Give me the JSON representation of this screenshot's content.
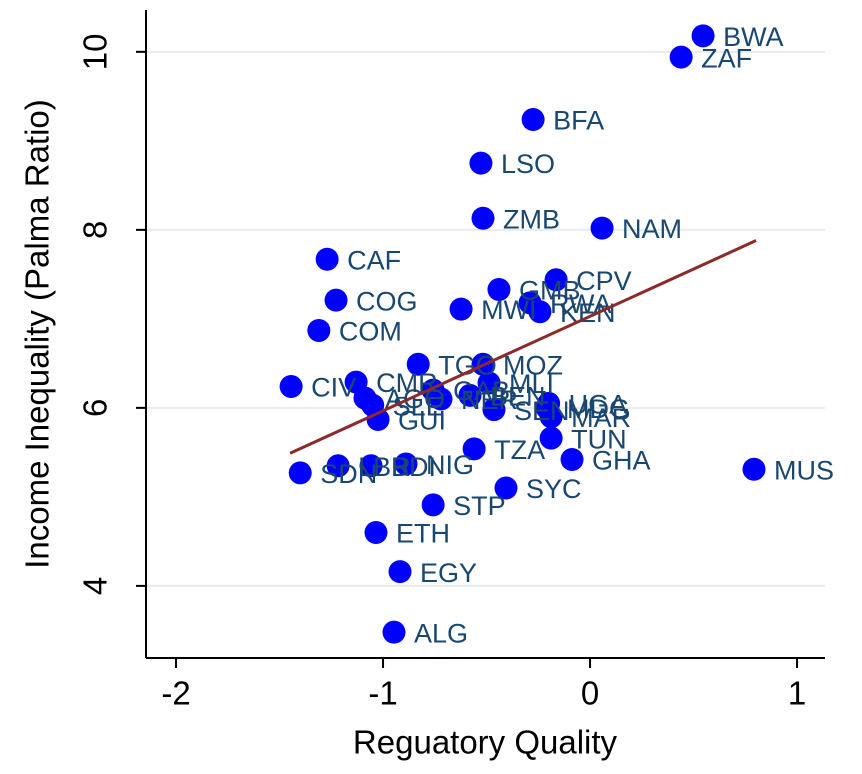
{
  "chart_data": {
    "type": "scatter",
    "x_label": "Reguatory Quality",
    "y_label": "Income Inequality (Palma Ratio)",
    "xlim": [
      -2.145,
      1.135
    ],
    "ylim": [
      3.19,
      10.47
    ],
    "xticks": [
      -2,
      -1,
      0,
      1
    ],
    "yticks": [
      4,
      6,
      8,
      10
    ],
    "grid": true,
    "color": "#0000ff",
    "labels": [
      "BWA",
      "ZAF",
      "BFA",
      "LSO",
      "ZMB",
      "NAM",
      "CAF",
      "CPV",
      "COG",
      "GMB",
      "RWA",
      "MWI",
      "KEN",
      "COM",
      "TGO",
      "MOZ",
      "CIV",
      "CMR",
      "AGO",
      "SLE",
      "GAB",
      "NER",
      "BEN",
      "MLI",
      "SEN",
      "UGA",
      "MDG",
      "MAR",
      "GUI",
      "TUN",
      "TZA",
      "GHA",
      "MUS",
      "NIG",
      "LBR",
      "BDI",
      "SDN",
      "SYC",
      "STP",
      "ETH",
      "EGY",
      "ALG"
    ],
    "x": [
      0.546,
      0.44,
      -0.275,
      -0.527,
      -0.517,
      0.058,
      -1.27,
      -0.164,
      -1.227,
      -0.44,
      -0.29,
      -0.623,
      -0.242,
      -1.31,
      -0.83,
      -0.517,
      -1.444,
      -1.13,
      -1.087,
      -1.05,
      -0.758,
      -0.72,
      -0.58,
      -0.488,
      -0.464,
      -0.2,
      -0.208,
      -0.188,
      -1.024,
      -0.188,
      -0.56,
      -0.087,
      0.792,
      -0.889,
      -1.217,
      -1.058,
      -1.4,
      -0.406,
      -0.758,
      -1.034,
      -0.918,
      -0.947
    ],
    "y": [
      10.18,
      9.94,
      9.24,
      8.75,
      8.13,
      8.02,
      7.67,
      7.44,
      7.21,
      7.33,
      7.18,
      7.11,
      7.08,
      6.87,
      6.49,
      6.49,
      6.24,
      6.29,
      6.11,
      6.03,
      6.2,
      6.1,
      6.14,
      6.28,
      5.98,
      6.05,
      6.0,
      5.9,
      5.87,
      5.66,
      5.54,
      5.42,
      5.31,
      5.37,
      5.35,
      5.35,
      5.27,
      5.1,
      4.91,
      4.6,
      4.16,
      3.48
    ],
    "fit_line": {
      "x": [
        -1.449,
        0.802
      ],
      "y": [
        5.49,
        7.88
      ],
      "color": "#8b2a2a"
    }
  }
}
